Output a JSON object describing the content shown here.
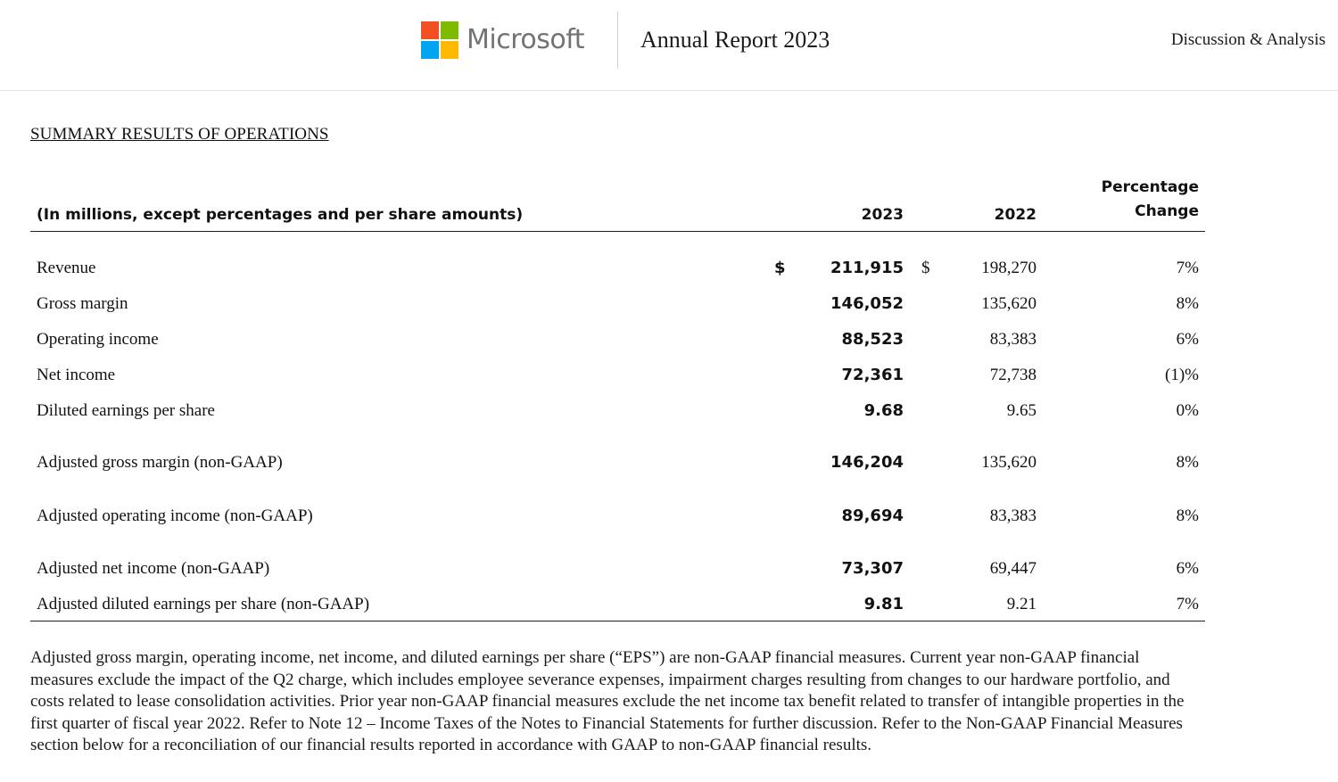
{
  "brand": {
    "name": "Microsoft",
    "logo_colors": [
      "#f25022",
      "#7fba00",
      "#00a4ef",
      "#ffb900"
    ]
  },
  "header": {
    "report_title": "Annual Report 2023",
    "section_link": "Discussion & Analysis"
  },
  "section_heading": "SUMMARY RESULTS OF OPERATIONS",
  "table": {
    "caption": "(In millions, except percentages and per share amounts)",
    "col_2023": "2023",
    "col_2022": "2022",
    "col_pct_line1": "Percentage",
    "col_pct_line2": "Change",
    "rows": [
      {
        "label": "Revenue",
        "dollar_2023": "$",
        "v2023": "211,915",
        "dollar_2022": "$",
        "v2022": "198,270",
        "pct": "7%"
      },
      {
        "label": "Gross margin",
        "v2023": "146,052",
        "v2022": "135,620",
        "pct": "8%"
      },
      {
        "label": "Operating income",
        "v2023": "88,523",
        "v2022": "83,383",
        "pct": "6%"
      },
      {
        "label": "Net income",
        "v2023": "72,361",
        "v2022": "72,738",
        "pct": "(1)%"
      },
      {
        "label": "Diluted earnings per share",
        "v2023": "9.68",
        "v2022": "9.65",
        "pct": "0%"
      },
      {
        "label": "Adjusted gross margin (non-GAAP)",
        "v2023": "146,204",
        "v2022": "135,620",
        "pct": "8%"
      },
      {
        "label": "Adjusted operating income (non-GAAP)",
        "v2023": "89,694",
        "v2022": "83,383",
        "pct": "8%"
      },
      {
        "label": "Adjusted net income (non-GAAP)",
        "v2023": "73,307",
        "v2022": "69,447",
        "pct": "6%"
      },
      {
        "label": "Adjusted diluted earnings per share (non-GAAP)",
        "v2023": "9.81",
        "v2022": "9.21",
        "pct": "7%"
      }
    ]
  },
  "footnote": "Adjusted gross margin, operating income, net income, and diluted earnings per share (“EPS”) are non-GAAP financial measures. Current year non-GAAP financial measures exclude the impact of the Q2 charge, which includes employee severance expenses, impairment charges resulting from changes to our hardware portfolio, and costs related to lease consolidation activities. Prior year non-GAAP financial measures exclude the net income tax benefit related to transfer of intangible properties in the first quarter of fiscal year 2022. Refer to Note 12 – Income Taxes of the Notes to Financial Statements for further discussion. Refer to the Non-GAAP Financial Measures section below for a reconciliation of our financial results reported in accordance with GAAP to non-GAAP financial results."
}
